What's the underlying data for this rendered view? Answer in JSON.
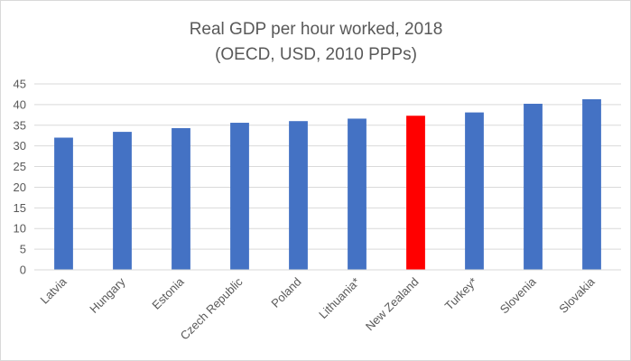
{
  "chart_data": {
    "type": "bar",
    "title": "Real GDP per hour worked, 2018",
    "subtitle": "(OECD, USD, 2010 PPPs)",
    "xlabel": "",
    "ylabel": "",
    "ylim": [
      0,
      45
    ],
    "yticks": [
      0,
      5,
      10,
      15,
      20,
      25,
      30,
      35,
      40,
      45
    ],
    "grid": true,
    "categories": [
      "Latvia",
      "Hungary",
      "Estonia",
      "Czech Republic",
      "Poland",
      "Lithuania*",
      "New Zealand",
      "Turkey*",
      "Slovenia",
      "Slovakia"
    ],
    "values": [
      32.0,
      33.4,
      34.3,
      35.6,
      36.0,
      36.6,
      37.3,
      38.1,
      40.2,
      41.3
    ],
    "colors": [
      "#4472c4",
      "#4472c4",
      "#4472c4",
      "#4472c4",
      "#4472c4",
      "#4472c4",
      "#ff0000",
      "#4472c4",
      "#4472c4",
      "#4472c4"
    ]
  }
}
